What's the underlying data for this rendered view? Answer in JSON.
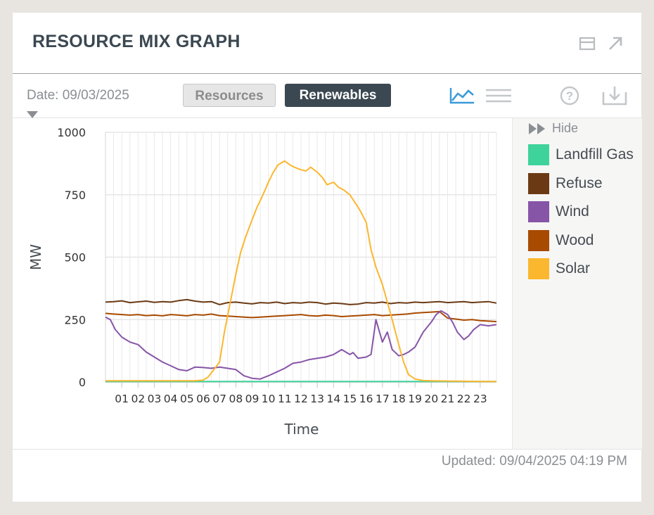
{
  "header": {
    "title": "RESOURCE MIX GRAPH",
    "icons": [
      "panel-icon",
      "expand-arrow-icon"
    ]
  },
  "toolbar": {
    "date_label": "Date: 09/03/2025",
    "resources_label": "Resources",
    "renewables_label": "Renewables",
    "icons": [
      "line-chart-icon",
      "list-icon",
      "help-icon",
      "download-icon"
    ]
  },
  "legend": {
    "hide_label": "Hide",
    "items": [
      {
        "label": "Landfill Gas",
        "color": "#3fd39c"
      },
      {
        "label": "Refuse",
        "color": "#6b3a14"
      },
      {
        "label": "Wind",
        "color": "#8755a8"
      },
      {
        "label": "Wood",
        "color": "#a84a00"
      },
      {
        "label": "Solar",
        "color": "#fbb72e"
      }
    ]
  },
  "footer": {
    "updated": "Updated: 09/04/2025 04:19 PM"
  },
  "chart_data": {
    "type": "line",
    "xlabel": "Time",
    "ylabel": "MW",
    "ylim": [
      0,
      1000
    ],
    "yticks": [
      0,
      250,
      500,
      750,
      1000
    ],
    "xlim": [
      0,
      24
    ],
    "xticks": [
      "01",
      "02",
      "03",
      "04",
      "05",
      "06",
      "07",
      "08",
      "09",
      "10",
      "11",
      "12",
      "13",
      "14",
      "15",
      "16",
      "17",
      "18",
      "19",
      "20",
      "21",
      "22",
      "23"
    ],
    "grid": true,
    "series": [
      {
        "name": "Landfill Gas",
        "color": "#3fd39c",
        "x": [
          0,
          24
        ],
        "y": [
          2,
          2
        ]
      },
      {
        "name": "Refuse",
        "color": "#6b3a14",
        "x": [
          0,
          0.5,
          1,
          1.5,
          2,
          2.5,
          3,
          3.5,
          4,
          4.5,
          5,
          5.5,
          6,
          6.5,
          7,
          7.5,
          8,
          8.5,
          9,
          9.5,
          10,
          10.5,
          11,
          11.5,
          12,
          12.5,
          13,
          13.5,
          14,
          14.5,
          15,
          15.5,
          16,
          16.5,
          17,
          17.5,
          18,
          18.5,
          19,
          19.5,
          20,
          20.5,
          21,
          21.5,
          22,
          22.5,
          23,
          23.5,
          24
        ],
        "y": [
          320,
          322,
          325,
          318,
          321,
          324,
          319,
          322,
          320,
          326,
          330,
          324,
          320,
          322,
          310,
          318,
          320,
          316,
          313,
          318,
          316,
          320,
          314,
          318,
          316,
          320,
          318,
          312,
          316,
          314,
          310,
          312,
          318,
          316,
          320,
          314,
          318,
          316,
          320,
          318,
          320,
          322,
          318,
          320,
          322,
          318,
          320,
          322,
          316
        ]
      },
      {
        "name": "Wood",
        "color": "#a84a00",
        "x": [
          0,
          0.5,
          1,
          1.5,
          2,
          2.5,
          3,
          3.5,
          4,
          4.5,
          5,
          5.5,
          6,
          6.5,
          7,
          7.5,
          8,
          8.5,
          9,
          9.5,
          10,
          10.5,
          11,
          11.5,
          12,
          12.5,
          13,
          13.5,
          14,
          14.5,
          15,
          15.5,
          16,
          16.5,
          17,
          17.5,
          18,
          18.5,
          19,
          19.5,
          20,
          20.5,
          21,
          21.5,
          22,
          22.5,
          23,
          23.5,
          24
        ],
        "y": [
          275,
          272,
          270,
          268,
          270,
          266,
          268,
          265,
          270,
          268,
          265,
          270,
          268,
          272,
          266,
          264,
          262,
          260,
          258,
          260,
          262,
          264,
          266,
          268,
          270,
          266,
          264,
          268,
          266,
          262,
          264,
          266,
          268,
          270,
          266,
          268,
          270,
          272,
          276,
          278,
          280,
          282,
          256,
          252,
          248,
          250,
          246,
          244,
          242
        ]
      },
      {
        "name": "Wind",
        "color": "#8755a8",
        "x": [
          0,
          0.3,
          0.6,
          1,
          1.5,
          2,
          2.5,
          3,
          3.5,
          4,
          4.5,
          5,
          5.5,
          6,
          6.5,
          7,
          7.5,
          8,
          8.5,
          9,
          9.5,
          10,
          10.5,
          11,
          11.5,
          12,
          12.5,
          13,
          13.5,
          14,
          14.5,
          15,
          15.2,
          15.5,
          16,
          16.3,
          16.6,
          17,
          17.3,
          17.6,
          18,
          18.3,
          18.6,
          19,
          19.5,
          20,
          20.3,
          20.6,
          21,
          21.3,
          21.6,
          22,
          22.3,
          22.6,
          23,
          23.5,
          24
        ],
        "y": [
          260,
          250,
          210,
          180,
          160,
          150,
          120,
          100,
          80,
          65,
          50,
          45,
          60,
          58,
          55,
          60,
          55,
          50,
          25,
          15,
          12,
          25,
          40,
          55,
          75,
          80,
          90,
          95,
          100,
          110,
          130,
          110,
          118,
          95,
          100,
          110,
          250,
          160,
          200,
          130,
          105,
          110,
          120,
          140,
          200,
          240,
          270,
          285,
          270,
          240,
          200,
          170,
          185,
          210,
          230,
          225,
          230
        ]
      },
      {
        "name": "Solar",
        "color": "#fbb72e",
        "x": [
          0,
          5.5,
          6,
          6.3,
          6.6,
          7,
          7.3,
          7.6,
          8,
          8.3,
          8.6,
          9,
          9.3,
          9.6,
          10,
          10.3,
          10.6,
          11,
          11.3,
          11.6,
          12,
          12.3,
          12.6,
          13,
          13.3,
          13.6,
          14,
          14.3,
          14.6,
          15,
          15.3,
          15.6,
          16,
          16.3,
          16.6,
          17,
          17.3,
          17.6,
          18,
          18.3,
          18.6,
          19,
          19.5,
          20,
          21,
          22,
          23,
          24
        ],
        "y": [
          5,
          5,
          8,
          20,
          45,
          80,
          200,
          300,
          430,
          520,
          580,
          650,
          700,
          740,
          800,
          840,
          870,
          885,
          870,
          860,
          850,
          845,
          860,
          840,
          820,
          790,
          800,
          780,
          770,
          750,
          720,
          690,
          640,
          530,
          460,
          390,
          320,
          250,
          150,
          80,
          30,
          12,
          6,
          5,
          4,
          3,
          2,
          2
        ]
      }
    ]
  }
}
